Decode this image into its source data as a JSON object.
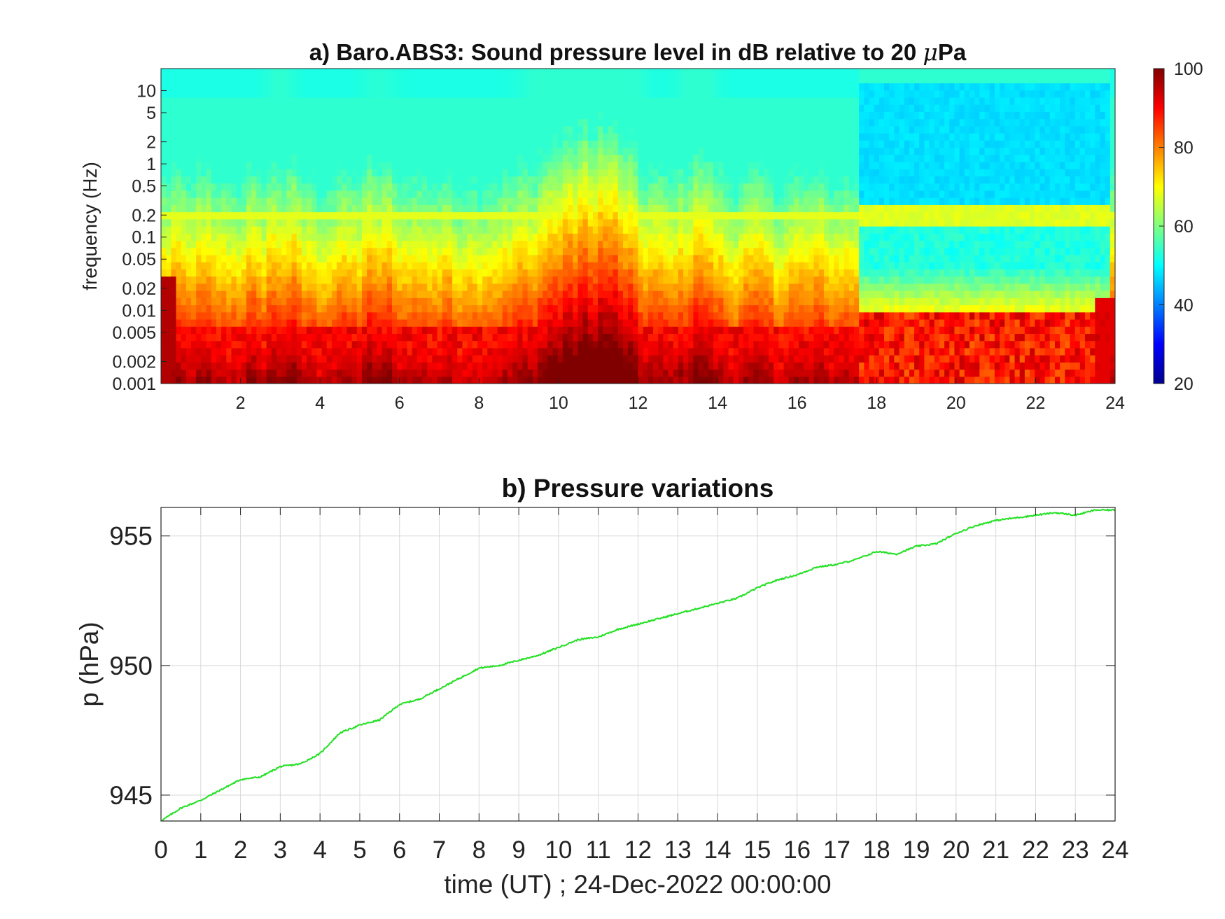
{
  "chart_data": [
    {
      "type": "heatmap",
      "title": "a) Baro.ABS3: Sound pressure level in dB relative to 20 μPa",
      "title_prefix": "a) Baro.ABS3: Sound pressure level in dB relative to 20 ",
      "title_mu": "μ",
      "title_suffix": "Pa",
      "ylabel": "frequency (Hz)",
      "xlabel": "",
      "xlim": [
        0,
        24
      ],
      "ylim": [
        0.001,
        20
      ],
      "y_scale": "log",
      "x_ticks": [
        2,
        4,
        6,
        8,
        10,
        12,
        14,
        16,
        18,
        20,
        22,
        24
      ],
      "y_ticks": [
        0.001,
        0.002,
        0.005,
        0.01,
        0.02,
        0.05,
        0.1,
        0.2,
        0.5,
        1,
        2,
        5,
        10
      ],
      "y_tick_labels": [
        "0.001",
        "0.002",
        "0.005",
        "0.01",
        "0.02",
        "0.05",
        "0.1",
        "0.2",
        "0.5",
        "1",
        "2",
        "5",
        "10"
      ],
      "colorbar": {
        "colormap": "jet",
        "clim": [
          20,
          100
        ],
        "ticks": [
          20,
          40,
          60,
          80,
          100
        ]
      }
    },
    {
      "type": "line",
      "title": "b) Pressure variations",
      "xlabel": "time (UT) ; 24-Dec-2022 00:00:00",
      "ylabel": "p (hPa)",
      "xlim": [
        0,
        24
      ],
      "ylim": [
        944,
        956.1
      ],
      "grid": true,
      "x_ticks": [
        0,
        1,
        2,
        3,
        4,
        5,
        6,
        7,
        8,
        9,
        10,
        11,
        12,
        13,
        14,
        15,
        16,
        17,
        18,
        19,
        20,
        21,
        22,
        23,
        24
      ],
      "y_ticks": [
        945,
        950,
        955
      ],
      "line_color": "#22e022",
      "series": [
        {
          "x": [
            0,
            0.5,
            1,
            1.5,
            2,
            2.5,
            3,
            3.5,
            4,
            4.5,
            5,
            5.5,
            6,
            6.5,
            7,
            7.5,
            8,
            8.5,
            9,
            9.5,
            10,
            10.5,
            11,
            11.5,
            12,
            12.5,
            13,
            13.5,
            14,
            14.5,
            15,
            15.5,
            16,
            16.5,
            17,
            17.5,
            18,
            18.5,
            19,
            19.5,
            20,
            20.5,
            21,
            21.5,
            22,
            22.5,
            23,
            23.5,
            24
          ],
          "values": [
            944.0,
            944.5,
            944.8,
            945.2,
            945.6,
            945.7,
            946.1,
            946.2,
            946.6,
            947.4,
            947.7,
            947.9,
            948.5,
            948.7,
            949.1,
            949.5,
            949.9,
            950.0,
            950.2,
            950.4,
            950.7,
            951.0,
            951.1,
            951.4,
            951.6,
            951.8,
            952.0,
            952.2,
            952.4,
            952.6,
            953.0,
            953.3,
            953.5,
            953.8,
            953.9,
            954.1,
            954.4,
            954.3,
            954.6,
            954.7,
            955.1,
            955.4,
            955.6,
            955.7,
            955.8,
            955.9,
            955.8,
            956.0,
            956.0
          ]
        }
      ]
    }
  ]
}
